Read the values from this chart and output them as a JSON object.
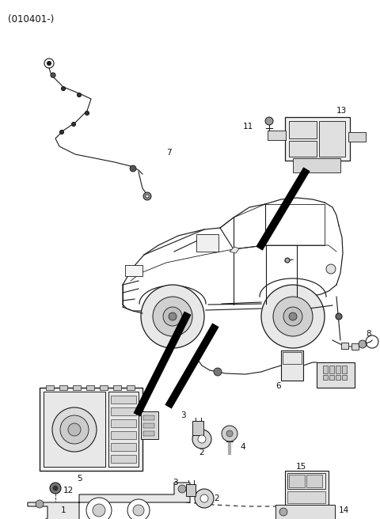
{
  "title": "(010401-)",
  "bg_color": "#ffffff",
  "fig_width": 4.8,
  "fig_height": 6.56,
  "dpi": 100,
  "line_color": "#1a1a1a",
  "label_color": "#111111",
  "label_fontsize": 7.0
}
